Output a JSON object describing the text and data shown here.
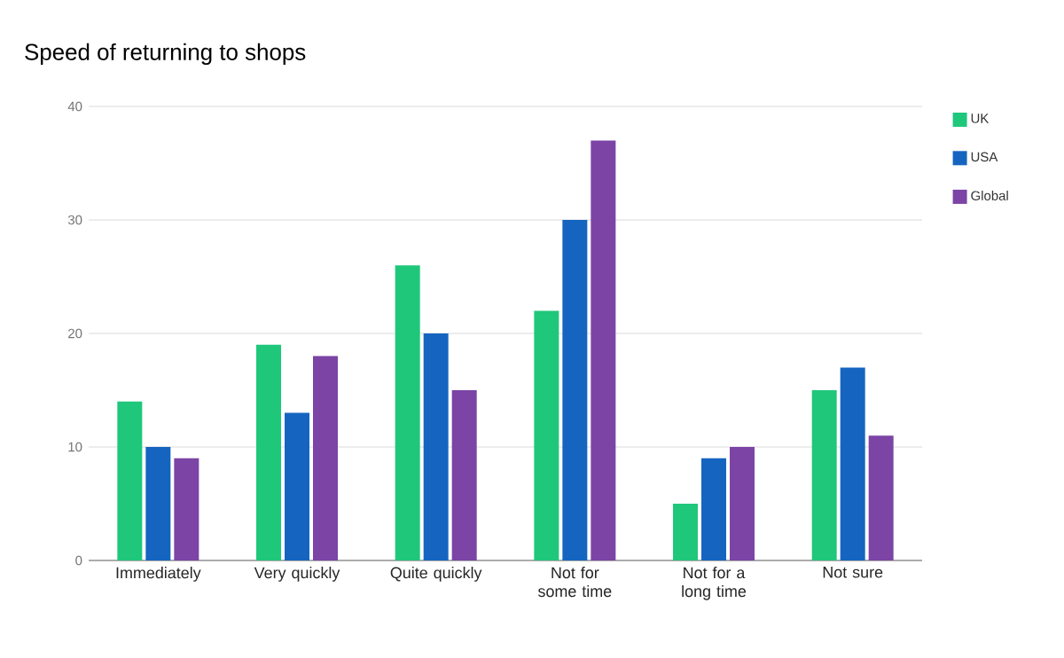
{
  "chart_data": {
    "type": "bar",
    "title": "Speed of returning to shops",
    "categories": [
      "Immediately",
      "Very quickly",
      "Quite quickly",
      "Not for some time",
      "Not for a long time",
      "Not sure"
    ],
    "series": [
      {
        "name": "UK",
        "color": "#1fc77b",
        "values": [
          14,
          19,
          26,
          22,
          5,
          15
        ]
      },
      {
        "name": "USA",
        "color": "#1565c0",
        "values": [
          10,
          13,
          20,
          30,
          9,
          17
        ]
      },
      {
        "name": "Global",
        "color": "#7b44a5",
        "values": [
          9,
          18,
          15,
          37,
          10,
          11
        ]
      }
    ],
    "ylim": [
      0,
      40
    ],
    "yticks": [
      0,
      10,
      20,
      30,
      40
    ],
    "grid": "y",
    "legend": "top right"
  }
}
